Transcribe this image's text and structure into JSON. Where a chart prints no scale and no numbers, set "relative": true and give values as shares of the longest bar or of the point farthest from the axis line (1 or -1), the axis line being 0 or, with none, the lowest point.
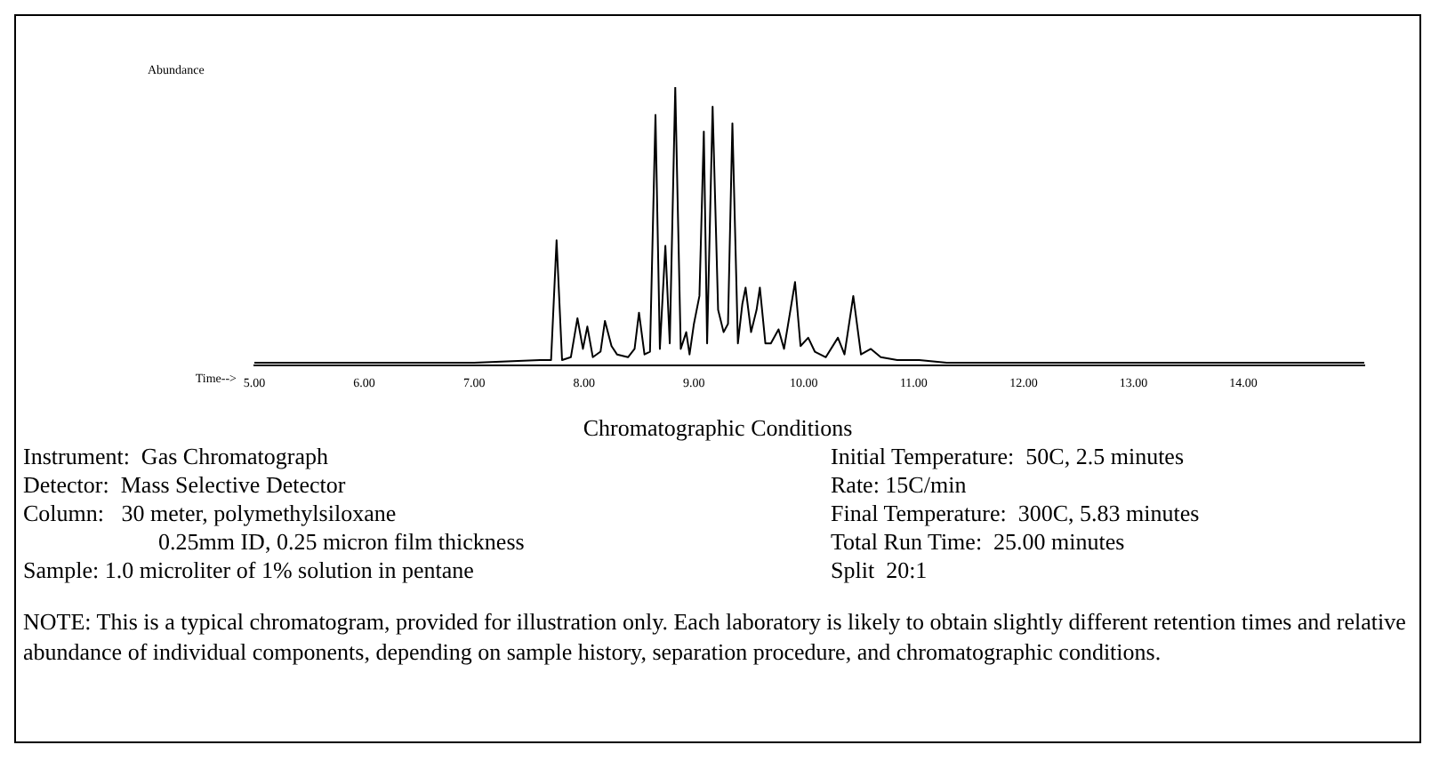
{
  "chart_data": {
    "type": "line",
    "relative": true,
    "xlabel": "Time-->",
    "ylabel": "Abundance",
    "color": "#000000",
    "xlim": [
      5,
      15.1
    ],
    "xticks": [
      {
        "value": 5,
        "label": "5.00"
      },
      {
        "value": 6,
        "label": "6.00"
      },
      {
        "value": 7,
        "label": "7.00"
      },
      {
        "value": 8,
        "label": "8.00"
      },
      {
        "value": 9,
        "label": "9.00"
      },
      {
        "value": 10,
        "label": "10.00"
      },
      {
        "value": 11,
        "label": "11.00"
      },
      {
        "value": 12,
        "label": "12.00"
      },
      {
        "value": 13,
        "label": "13.00"
      },
      {
        "value": 14,
        "label": "14.00"
      }
    ],
    "x": [
      5.0,
      6.0,
      7.0,
      7.6,
      7.7,
      7.75,
      7.8,
      7.88,
      7.94,
      7.99,
      8.03,
      8.08,
      8.15,
      8.19,
      8.25,
      8.3,
      8.4,
      8.46,
      8.5,
      8.55,
      8.6,
      8.65,
      8.69,
      8.74,
      8.78,
      8.83,
      8.88,
      8.93,
      8.96,
      9.0,
      9.05,
      9.09,
      9.12,
      9.17,
      9.22,
      9.27,
      9.31,
      9.35,
      9.4,
      9.44,
      9.47,
      9.52,
      9.57,
      9.6,
      9.65,
      9.7,
      9.77,
      9.82,
      9.87,
      9.92,
      9.97,
      10.04,
      10.1,
      10.2,
      10.31,
      10.37,
      10.45,
      10.52,
      10.61,
      10.7,
      10.85,
      11.05,
      11.3,
      12,
      13,
      14,
      15.1
    ],
    "values": [
      0.01,
      0.01,
      0.01,
      0.02,
      0.02,
      0.45,
      0.02,
      0.03,
      0.17,
      0.06,
      0.14,
      0.03,
      0.05,
      0.16,
      0.07,
      0.04,
      0.03,
      0.06,
      0.19,
      0.04,
      0.05,
      0.9,
      0.06,
      0.43,
      0.08,
      1.0,
      0.06,
      0.12,
      0.04,
      0.15,
      0.25,
      0.84,
      0.08,
      0.93,
      0.2,
      0.12,
      0.15,
      0.87,
      0.08,
      0.22,
      0.28,
      0.12,
      0.2,
      0.28,
      0.08,
      0.08,
      0.13,
      0.06,
      0.18,
      0.3,
      0.07,
      0.1,
      0.05,
      0.03,
      0.1,
      0.04,
      0.25,
      0.04,
      0.06,
      0.03,
      0.02,
      0.02,
      0.01,
      0.01,
      0.01,
      0.01,
      0.01
    ],
    "annotations": [
      "Chromatographic Conditions",
      "Instrument:  Gas Chromatograph",
      "Detector:  Mass Selective Detector",
      "Column:   30 meter, polymethylsiloxane",
      "0.25mm ID, 0.25 micron film thickness",
      "Sample: 1.0 microliter of 1% solution in pentane",
      "Initial Temperature:  50C, 2.5 minutes",
      "Rate: 15C/min",
      "Final Temperature:  300C, 5.83 minutes",
      "Total Run Time:  25.00 minutes",
      "Split  20:1",
      "NOTE: This is a typical chromatogram, provided for illustration only.  Each laboratory is likely to obtain slightly different retention times and relative abundance of individual components, depending on sample history, separation procedure, and chromatographic conditions."
    ]
  }
}
